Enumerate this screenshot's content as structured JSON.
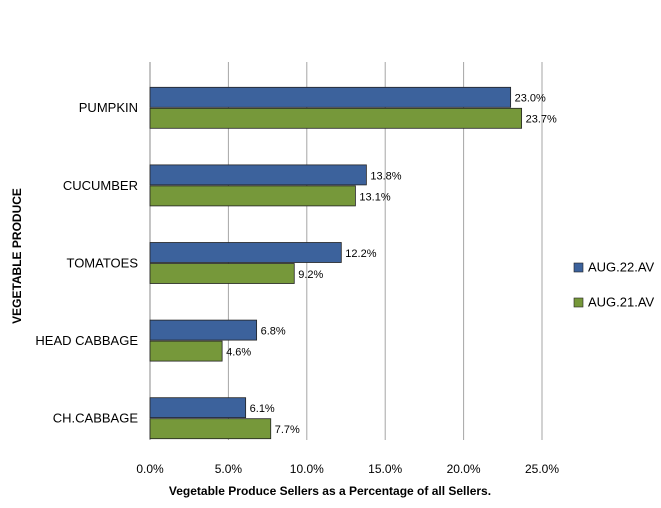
{
  "chart_data": {
    "type": "bar",
    "orientation": "horizontal",
    "xlabel": "Vegetable Produce Sellers as a Percentage of all Sellers.",
    "ylabel": "VEGETABLE PRODUCE",
    "categories": [
      "PUMPKIN",
      "CUCUMBER",
      "TOMATOES",
      "HEAD CABBAGE",
      "CH.CABBAGE"
    ],
    "series": [
      {
        "name": "AUG.22.AV",
        "color": "#3c629c",
        "values": [
          23.0,
          13.8,
          12.2,
          6.8,
          6.1
        ],
        "value_labels": [
          "23.0%",
          "13.8%",
          "12.2%",
          "6.8%",
          "6.1%"
        ]
      },
      {
        "name": "AUG.21.AV",
        "color": "#76983a",
        "values": [
          23.7,
          13.1,
          9.2,
          4.6,
          7.7
        ],
        "value_labels": [
          "23.7%",
          "13.1%",
          "9.2%",
          "4.6%",
          "7.7%"
        ]
      }
    ],
    "xlim": [
      0,
      25
    ],
    "xticks": [
      {
        "value": 0,
        "label": "0.0%"
      },
      {
        "value": 5,
        "label": "5.0%"
      },
      {
        "value": 10,
        "label": "10.0%"
      },
      {
        "value": 15,
        "label": "15.0%"
      },
      {
        "value": 20,
        "label": "20.0%"
      },
      {
        "value": 25,
        "label": "25.0%"
      }
    ],
    "grid": true,
    "legend": "right"
  }
}
